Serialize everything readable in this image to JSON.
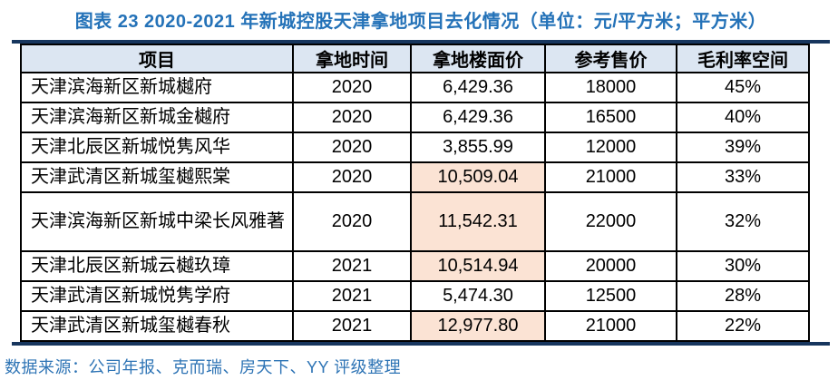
{
  "title": "图表 23 2020-2021 年新城控股天津拿地项目去化情况（单位：元/平方米；平方米）",
  "source": "数据来源：公司年报、克而瑞、房天下、YY 评级整理",
  "colors": {
    "title_blue": "#2472b8",
    "source_blue": "#2e74b5",
    "rule_navy": "#17365e",
    "header_bg": "#dce6f2",
    "highlight_bg": "#fbe3d4",
    "border_black": "#000000"
  },
  "table": {
    "headers": [
      "项目",
      "拿地时间",
      "拿地楼面价",
      "参考售价",
      "毛利率空间"
    ],
    "rows": [
      {
        "project": "天津滨海新区新城樾府",
        "year": "2020",
        "floor_price": "6,429.36",
        "ref_price": "18000",
        "margin": "45%",
        "highlight": false
      },
      {
        "project": "天津滨海新区新城金樾府",
        "year": "2020",
        "floor_price": "6,429.36",
        "ref_price": "16500",
        "margin": "40%",
        "highlight": false
      },
      {
        "project": "天津北辰区新城悦隽风华",
        "year": "2020",
        "floor_price": "3,855.99",
        "ref_price": "12000",
        "margin": "39%",
        "highlight": false
      },
      {
        "project": "天津武清区新城玺樾熙棠",
        "year": "2020",
        "floor_price": "10,509.04",
        "ref_price": "21000",
        "margin": "33%",
        "highlight": true
      },
      {
        "project": "天津滨海新区新城中梁长风雅著",
        "year": "2020",
        "floor_price": "11,542.31",
        "ref_price": "22000",
        "margin": "32%",
        "highlight": true
      },
      {
        "project": "天津北辰区新城云樾玖璋",
        "year": "2021",
        "floor_price": "10,514.94",
        "ref_price": "20000",
        "margin": "30%",
        "highlight": true
      },
      {
        "project": "天津武清区新城悦隽学府",
        "year": "2021",
        "floor_price": "5,474.30",
        "ref_price": "12500",
        "margin": "28%",
        "highlight": false
      },
      {
        "project": "天津武清区新城玺樾春秋",
        "year": "2021",
        "floor_price": "12,977.80",
        "ref_price": "21000",
        "margin": "22%",
        "highlight": true
      }
    ]
  }
}
